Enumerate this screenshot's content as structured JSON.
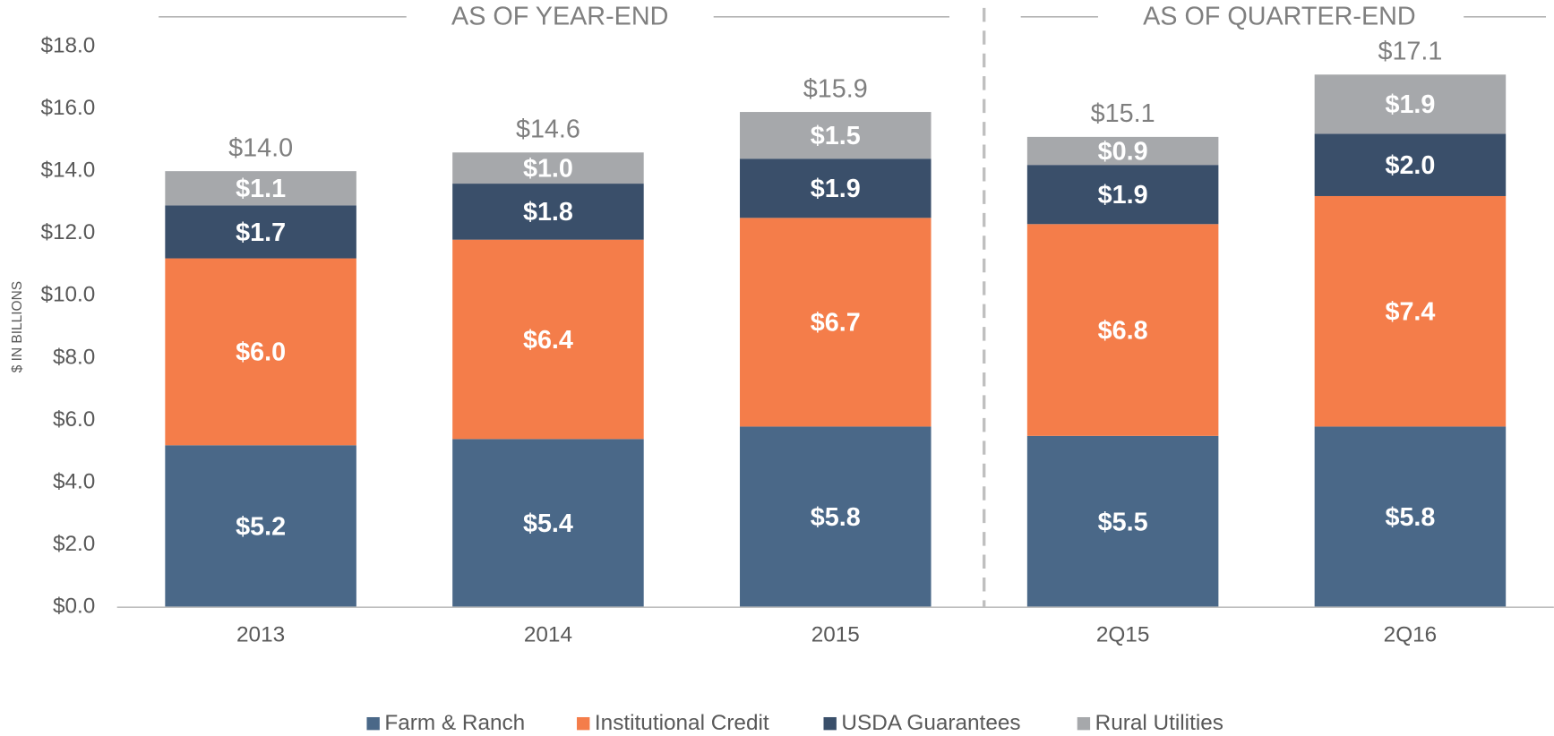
{
  "chart_data": {
    "type": "stacked_bar",
    "y_axis_label": "$ IN BILLIONS",
    "annotations": [
      "AS OF YEAR-END",
      "AS OF QUARTER-END"
    ],
    "categories": [
      "2013",
      "2014",
      "2015",
      "2Q15",
      "2Q16"
    ],
    "series": [
      {
        "name": "Farm & Ranch",
        "color": "#4a6888",
        "values": [
          5.2,
          5.4,
          5.8,
          5.5,
          5.8
        ],
        "value_labels": [
          "$5.2",
          "$5.4",
          "$5.8",
          "$5.5",
          "$5.8"
        ]
      },
      {
        "name": "Institutional Credit",
        "color": "#f47d4a",
        "values": [
          6.0,
          6.4,
          6.7,
          6.8,
          7.4
        ],
        "value_labels": [
          "$6.0",
          "$6.4",
          "$6.7",
          "$6.8",
          "$7.4"
        ]
      },
      {
        "name": "USDA Guarantees",
        "color": "#3a4f6a",
        "values": [
          1.7,
          1.8,
          1.9,
          1.9,
          2.0
        ],
        "value_labels": [
          "$1.7",
          "$1.8",
          "$1.9",
          "$1.9",
          "$2.0"
        ]
      },
      {
        "name": "Rural Utilities",
        "color": "#a6a8ab",
        "values": [
          1.1,
          1.0,
          1.5,
          0.9,
          1.9
        ],
        "value_labels": [
          "$1.1",
          "$1.0",
          "$1.5",
          "$0.9",
          "$1.9"
        ]
      }
    ],
    "totals": [
      14.0,
      14.6,
      15.9,
      15.1,
      17.1
    ],
    "total_labels": [
      "$14.0",
      "$14.6",
      "$15.9",
      "$15.1",
      "$17.1"
    ],
    "ylim": [
      0,
      18
    ],
    "yticks": [
      {
        "value": 0,
        "label": "$0.0"
      },
      {
        "value": 2,
        "label": "$2.0"
      },
      {
        "value": 4,
        "label": "$4.0"
      },
      {
        "value": 6,
        "label": "$6.0"
      },
      {
        "value": 8,
        "label": "$8.0"
      },
      {
        "value": 10,
        "label": "$10.0"
      },
      {
        "value": 12,
        "label": "$12.0"
      },
      {
        "value": 14,
        "label": "$14.0"
      },
      {
        "value": 16,
        "label": "$16.0"
      },
      {
        "value": 18,
        "label": "$18.0"
      }
    ],
    "grid": false,
    "legend": "bottom"
  }
}
